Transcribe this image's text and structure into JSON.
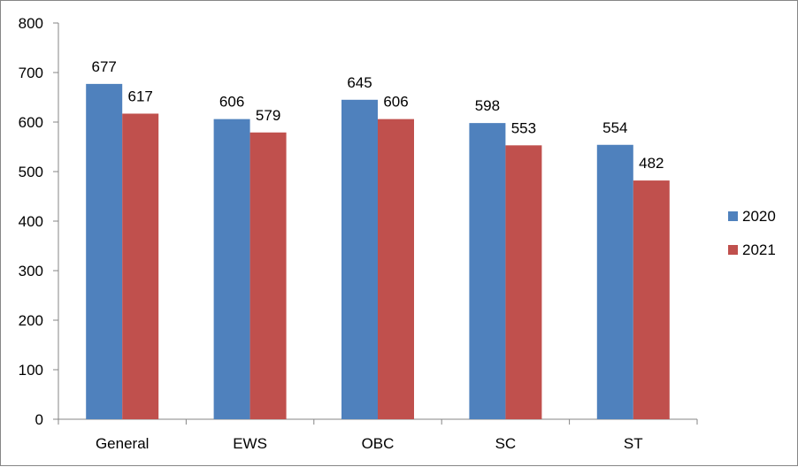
{
  "chart_data": {
    "type": "bar",
    "title": "",
    "xlabel": "",
    "ylabel": "",
    "categories": [
      "General",
      "EWS",
      "OBC",
      "SC",
      "ST"
    ],
    "series": [
      {
        "name": "2020",
        "values": [
          677,
          606,
          645,
          598,
          554
        ],
        "color": "#4F81BD"
      },
      {
        "name": "2021",
        "values": [
          617,
          579,
          606,
          553,
          482
        ],
        "color": "#C0504D"
      }
    ],
    "ylim": [
      0,
      800
    ],
    "yticks": [
      0,
      100,
      200,
      300,
      400,
      500,
      600,
      700,
      800
    ],
    "grid": false,
    "legend_position": "right",
    "data_labels": true
  }
}
